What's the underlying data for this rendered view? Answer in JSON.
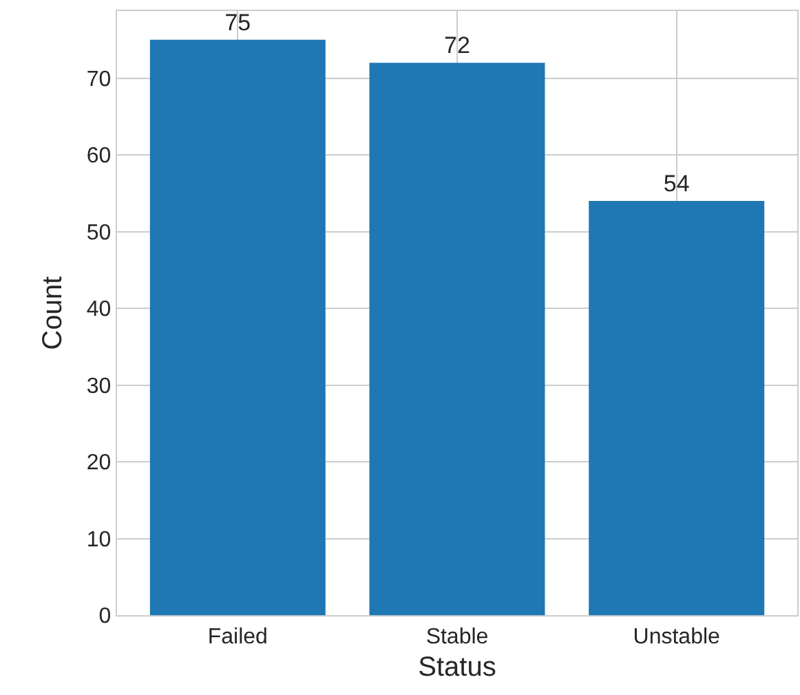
{
  "chart_data": {
    "type": "bar",
    "xlabel": "Status",
    "ylabel": "Count",
    "categories": [
      "Failed",
      "Stable",
      "Unstable"
    ],
    "values": [
      75,
      72,
      54
    ],
    "color": "#1f77b4",
    "ylim": [
      0,
      78.75
    ],
    "yticks": [
      0,
      10,
      20,
      30,
      40,
      50,
      60,
      70
    ],
    "grid": true,
    "data_labels": true
  }
}
